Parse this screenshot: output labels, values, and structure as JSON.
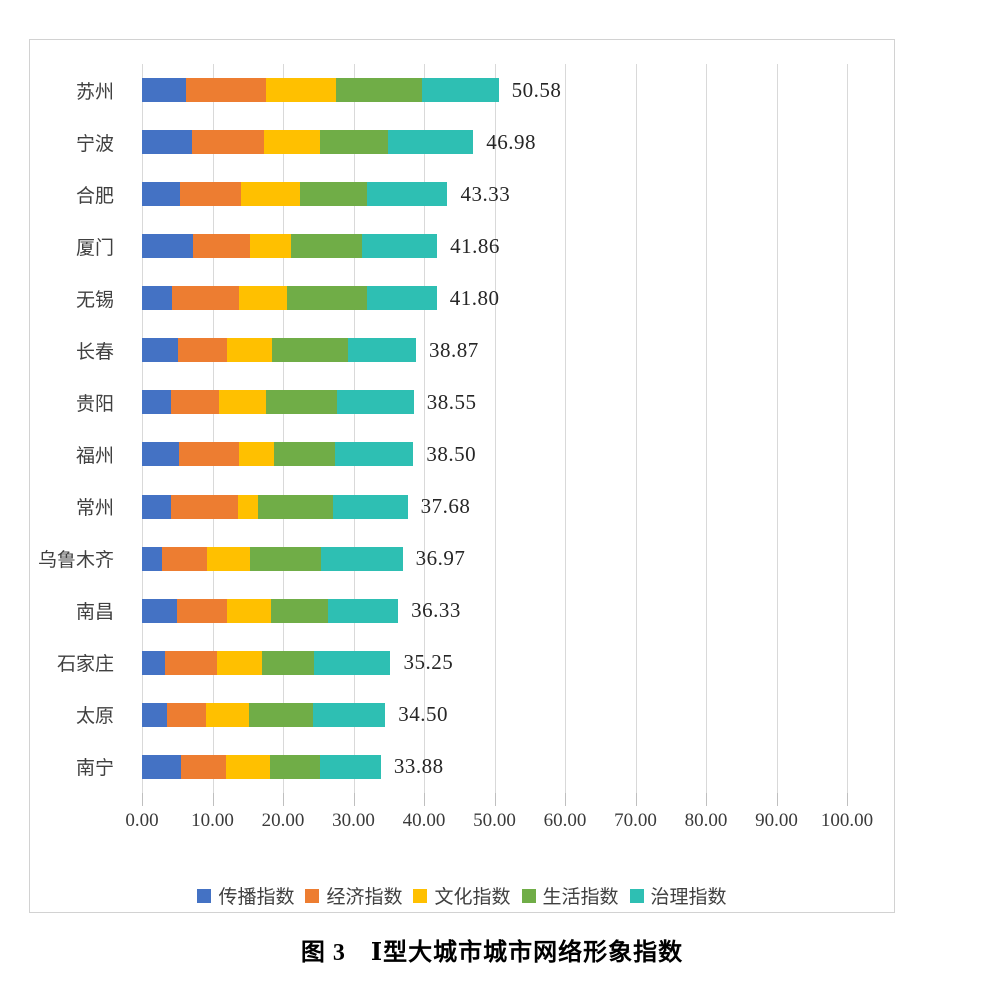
{
  "caption": "图 3　Ⅰ型大城市城市网络形象指数",
  "chart_data": {
    "type": "bar",
    "orientation": "horizontal",
    "stacked": true,
    "grid": "vertical",
    "legend_position": "bottom",
    "xlim": [
      0,
      100
    ],
    "x_ticks": [
      "0.00",
      "10.00",
      "20.00",
      "30.00",
      "40.00",
      "50.00",
      "60.00",
      "70.00",
      "80.00",
      "90.00",
      "100.00"
    ],
    "categories": [
      "苏州",
      "宁波",
      "合肥",
      "厦门",
      "无锡",
      "长春",
      "贵阳",
      "福州",
      "常州",
      "乌鲁木齐",
      "南昌",
      "石家庄",
      "太原",
      "南宁"
    ],
    "totals": [
      50.58,
      46.98,
      43.33,
      41.86,
      41.8,
      38.87,
      38.55,
      38.5,
      37.68,
      36.97,
      36.33,
      35.25,
      34.5,
      33.88
    ],
    "total_labels": [
      "50.58",
      "46.98",
      "43.33",
      "41.86",
      "41.80",
      "38.87",
      "38.55",
      "38.50",
      "37.68",
      "36.97",
      "36.33",
      "35.25",
      "34.50",
      "33.88"
    ],
    "series": [
      {
        "name": "传播指数",
        "color": "#4472C4",
        "values": [
          6.26,
          7.1,
          5.45,
          7.2,
          4.25,
          5.05,
          4.1,
          5.2,
          4.1,
          2.85,
          4.95,
          3.3,
          3.6,
          5.55
        ]
      },
      {
        "name": "经济指数",
        "color": "#ED7D31",
        "values": [
          11.31,
          10.15,
          8.6,
          8.15,
          9.5,
          7.0,
          6.8,
          8.5,
          9.45,
          6.35,
          7.1,
          7.4,
          5.45,
          6.35
        ]
      },
      {
        "name": "文化指数",
        "color": "#FFC000",
        "values": [
          9.89,
          7.95,
          8.4,
          5.85,
          6.8,
          6.45,
          6.7,
          5.05,
          2.95,
          6.1,
          6.25,
          6.35,
          6.15,
          6.25
        ]
      },
      {
        "name": "生活指数",
        "color": "#70AD47",
        "values": [
          12.32,
          9.7,
          9.5,
          10.05,
          11.4,
          10.7,
          10.1,
          8.65,
          10.6,
          10.15,
          8.05,
          7.4,
          9.1,
          7.15
        ]
      },
      {
        "name": "治理指数",
        "color": "#2EBFB3",
        "values": [
          10.8,
          12.08,
          11.38,
          10.61,
          9.85,
          9.67,
          10.85,
          11.1,
          10.58,
          11.52,
          9.98,
          10.8,
          10.2,
          8.58
        ]
      }
    ]
  }
}
